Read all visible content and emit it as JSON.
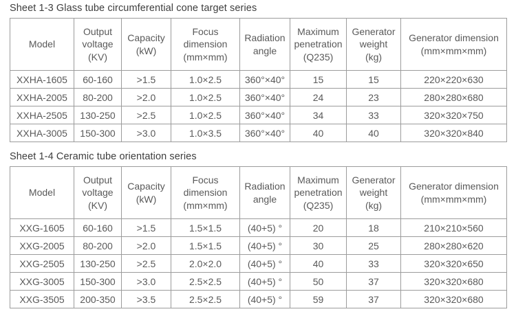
{
  "colors": {
    "background": "#ffffff",
    "table_border": "#9b9b9b",
    "cell_text": "#595959",
    "title_text": "#3d3d3d"
  },
  "tables": [
    {
      "title": "Sheet 1-3 Glass tube circumferential cone target series",
      "headers": [
        [
          "Model"
        ],
        [
          "Output",
          "voltage",
          "(KV)"
        ],
        [
          "Capacity",
          "(kW)"
        ],
        [
          "Focus",
          "dimension",
          "(mm×mm)"
        ],
        [
          "Radiation",
          "angle"
        ],
        [
          "Maximum",
          "penetration",
          "(Q235)"
        ],
        [
          "Generator",
          "weight",
          "(kg)"
        ],
        [
          "Generator dimension",
          "(mm×mm×mm)"
        ]
      ],
      "rows": [
        [
          "XXHA-1605",
          "60-160",
          ">1.5",
          "1.0×2.5",
          "360°×40°",
          "15",
          "15",
          "220×220×630"
        ],
        [
          "XXHA-2005",
          "80-200",
          ">2.0",
          "1.0×2.5",
          "360°×40°",
          "24",
          "23",
          "280×280×680"
        ],
        [
          "XXHA-2505",
          "130-250",
          ">2.5",
          "1.0×2.5",
          "360°×40°",
          "34",
          "33",
          "320×320×750"
        ],
        [
          "XXHA-3005",
          "150-300",
          ">3.0",
          "1.0×3.5",
          "360°×40°",
          "40",
          "40",
          "320×320×840"
        ]
      ]
    },
    {
      "title": "Sheet 1-4 Ceramic tube orientation series",
      "headers": [
        [
          "Model"
        ],
        [
          "Output",
          "voltage",
          "(KV)"
        ],
        [
          "Capacity",
          "(kW)"
        ],
        [
          "Focus",
          "dimension",
          "(mm×mm)"
        ],
        [
          "Radiation",
          "angle"
        ],
        [
          "Maximum",
          "penetration",
          "(Q235)"
        ],
        [
          "Generator",
          "weight",
          "(kg)"
        ],
        [
          "Generator dimension",
          "(mm×mm×mm)"
        ]
      ],
      "rows": [
        [
          "XXG-1605",
          "60-160",
          ">1.5",
          "1.5×1.5",
          "(40+5) °",
          "20",
          "18",
          "210×210×560"
        ],
        [
          "XXG-2005",
          "80-200",
          ">2.0",
          "1.5×1.5",
          "(40+5) °",
          "30",
          "25",
          "280×280×620"
        ],
        [
          "XXG-2505",
          "130-250",
          ">2.5",
          "2.0×2.0",
          "(40+5) °",
          "40",
          "33",
          "320×320×650"
        ],
        [
          "XXG-3005",
          "150-300",
          ">3.0",
          "2.5×2.5",
          "(40+5) °",
          "50",
          "37",
          "320×320×680"
        ],
        [
          "XXG-3505",
          "200-350",
          ">3.5",
          "2.5×2.5",
          "(40+5) °",
          "59",
          "37",
          "320×320×680"
        ]
      ]
    }
  ]
}
